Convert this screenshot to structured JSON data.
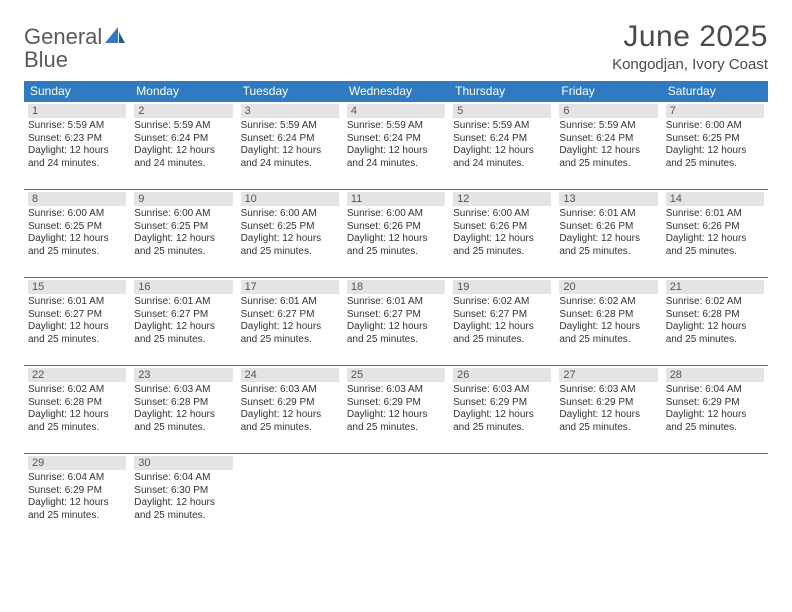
{
  "logo": {
    "text1": "General",
    "text2": "Blue"
  },
  "title": "June 2025",
  "location": "Kongodjan, Ivory Coast",
  "colors": {
    "header_bg": "#2f7ac0",
    "header_text": "#ffffff",
    "daynum_bg": "#e4e4e4",
    "border": "#2f7ac0",
    "body_text": "#333333"
  },
  "weekdays": [
    "Sunday",
    "Monday",
    "Tuesday",
    "Wednesday",
    "Thursday",
    "Friday",
    "Saturday"
  ],
  "weeks": [
    [
      {
        "n": "1",
        "sr": "Sunrise: 5:59 AM",
        "ss": "Sunset: 6:23 PM",
        "d1": "Daylight: 12 hours",
        "d2": "and 24 minutes."
      },
      {
        "n": "2",
        "sr": "Sunrise: 5:59 AM",
        "ss": "Sunset: 6:24 PM",
        "d1": "Daylight: 12 hours",
        "d2": "and 24 minutes."
      },
      {
        "n": "3",
        "sr": "Sunrise: 5:59 AM",
        "ss": "Sunset: 6:24 PM",
        "d1": "Daylight: 12 hours",
        "d2": "and 24 minutes."
      },
      {
        "n": "4",
        "sr": "Sunrise: 5:59 AM",
        "ss": "Sunset: 6:24 PM",
        "d1": "Daylight: 12 hours",
        "d2": "and 24 minutes."
      },
      {
        "n": "5",
        "sr": "Sunrise: 5:59 AM",
        "ss": "Sunset: 6:24 PM",
        "d1": "Daylight: 12 hours",
        "d2": "and 24 minutes."
      },
      {
        "n": "6",
        "sr": "Sunrise: 5:59 AM",
        "ss": "Sunset: 6:24 PM",
        "d1": "Daylight: 12 hours",
        "d2": "and 25 minutes."
      },
      {
        "n": "7",
        "sr": "Sunrise: 6:00 AM",
        "ss": "Sunset: 6:25 PM",
        "d1": "Daylight: 12 hours",
        "d2": "and 25 minutes."
      }
    ],
    [
      {
        "n": "8",
        "sr": "Sunrise: 6:00 AM",
        "ss": "Sunset: 6:25 PM",
        "d1": "Daylight: 12 hours",
        "d2": "and 25 minutes."
      },
      {
        "n": "9",
        "sr": "Sunrise: 6:00 AM",
        "ss": "Sunset: 6:25 PM",
        "d1": "Daylight: 12 hours",
        "d2": "and 25 minutes."
      },
      {
        "n": "10",
        "sr": "Sunrise: 6:00 AM",
        "ss": "Sunset: 6:25 PM",
        "d1": "Daylight: 12 hours",
        "d2": "and 25 minutes."
      },
      {
        "n": "11",
        "sr": "Sunrise: 6:00 AM",
        "ss": "Sunset: 6:26 PM",
        "d1": "Daylight: 12 hours",
        "d2": "and 25 minutes."
      },
      {
        "n": "12",
        "sr": "Sunrise: 6:00 AM",
        "ss": "Sunset: 6:26 PM",
        "d1": "Daylight: 12 hours",
        "d2": "and 25 minutes."
      },
      {
        "n": "13",
        "sr": "Sunrise: 6:01 AM",
        "ss": "Sunset: 6:26 PM",
        "d1": "Daylight: 12 hours",
        "d2": "and 25 minutes."
      },
      {
        "n": "14",
        "sr": "Sunrise: 6:01 AM",
        "ss": "Sunset: 6:26 PM",
        "d1": "Daylight: 12 hours",
        "d2": "and 25 minutes."
      }
    ],
    [
      {
        "n": "15",
        "sr": "Sunrise: 6:01 AM",
        "ss": "Sunset: 6:27 PM",
        "d1": "Daylight: 12 hours",
        "d2": "and 25 minutes."
      },
      {
        "n": "16",
        "sr": "Sunrise: 6:01 AM",
        "ss": "Sunset: 6:27 PM",
        "d1": "Daylight: 12 hours",
        "d2": "and 25 minutes."
      },
      {
        "n": "17",
        "sr": "Sunrise: 6:01 AM",
        "ss": "Sunset: 6:27 PM",
        "d1": "Daylight: 12 hours",
        "d2": "and 25 minutes."
      },
      {
        "n": "18",
        "sr": "Sunrise: 6:01 AM",
        "ss": "Sunset: 6:27 PM",
        "d1": "Daylight: 12 hours",
        "d2": "and 25 minutes."
      },
      {
        "n": "19",
        "sr": "Sunrise: 6:02 AM",
        "ss": "Sunset: 6:27 PM",
        "d1": "Daylight: 12 hours",
        "d2": "and 25 minutes."
      },
      {
        "n": "20",
        "sr": "Sunrise: 6:02 AM",
        "ss": "Sunset: 6:28 PM",
        "d1": "Daylight: 12 hours",
        "d2": "and 25 minutes."
      },
      {
        "n": "21",
        "sr": "Sunrise: 6:02 AM",
        "ss": "Sunset: 6:28 PM",
        "d1": "Daylight: 12 hours",
        "d2": "and 25 minutes."
      }
    ],
    [
      {
        "n": "22",
        "sr": "Sunrise: 6:02 AM",
        "ss": "Sunset: 6:28 PM",
        "d1": "Daylight: 12 hours",
        "d2": "and 25 minutes."
      },
      {
        "n": "23",
        "sr": "Sunrise: 6:03 AM",
        "ss": "Sunset: 6:28 PM",
        "d1": "Daylight: 12 hours",
        "d2": "and 25 minutes."
      },
      {
        "n": "24",
        "sr": "Sunrise: 6:03 AM",
        "ss": "Sunset: 6:29 PM",
        "d1": "Daylight: 12 hours",
        "d2": "and 25 minutes."
      },
      {
        "n": "25",
        "sr": "Sunrise: 6:03 AM",
        "ss": "Sunset: 6:29 PM",
        "d1": "Daylight: 12 hours",
        "d2": "and 25 minutes."
      },
      {
        "n": "26",
        "sr": "Sunrise: 6:03 AM",
        "ss": "Sunset: 6:29 PM",
        "d1": "Daylight: 12 hours",
        "d2": "and 25 minutes."
      },
      {
        "n": "27",
        "sr": "Sunrise: 6:03 AM",
        "ss": "Sunset: 6:29 PM",
        "d1": "Daylight: 12 hours",
        "d2": "and 25 minutes."
      },
      {
        "n": "28",
        "sr": "Sunrise: 6:04 AM",
        "ss": "Sunset: 6:29 PM",
        "d1": "Daylight: 12 hours",
        "d2": "and 25 minutes."
      }
    ],
    [
      {
        "n": "29",
        "sr": "Sunrise: 6:04 AM",
        "ss": "Sunset: 6:29 PM",
        "d1": "Daylight: 12 hours",
        "d2": "and 25 minutes."
      },
      {
        "n": "30",
        "sr": "Sunrise: 6:04 AM",
        "ss": "Sunset: 6:30 PM",
        "d1": "Daylight: 12 hours",
        "d2": "and 25 minutes."
      },
      null,
      null,
      null,
      null,
      null
    ]
  ]
}
